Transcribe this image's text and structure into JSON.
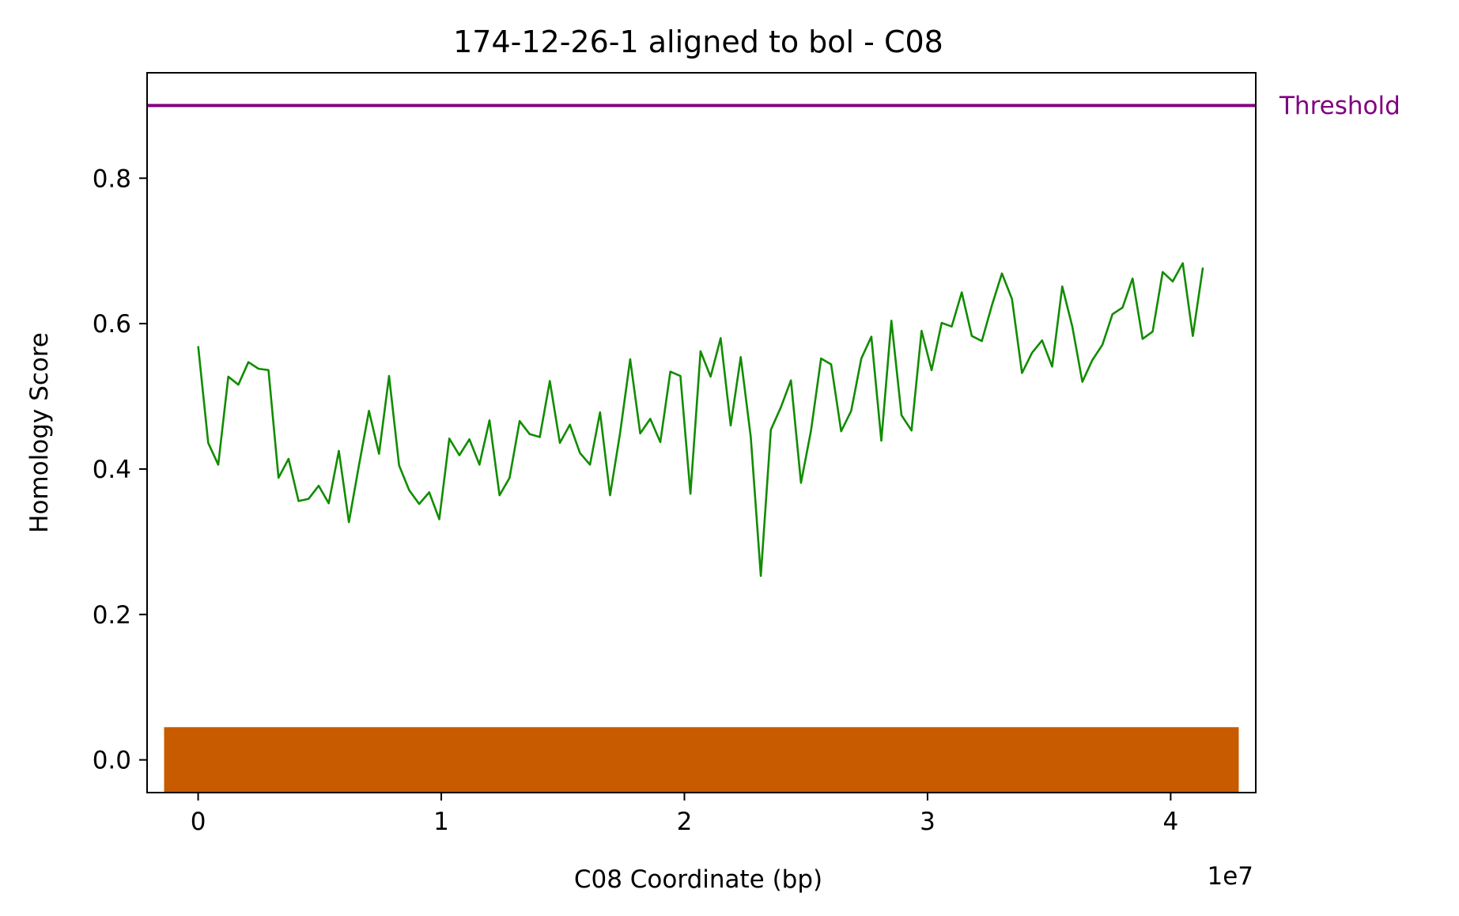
{
  "chart_data": {
    "type": "line",
    "title": "174-12-26-1 aligned to bol - C08",
    "xlabel": "C08 Coordinate (bp)",
    "ylabel": "Homology Score",
    "x_offset_label": "1e7",
    "xlim": [
      -2100000,
      43500000
    ],
    "ylim": [
      -0.045,
      0.945
    ],
    "xticks": [
      0,
      10000000,
      20000000,
      30000000,
      40000000
    ],
    "xtick_labels": [
      "0",
      "1",
      "2",
      "3",
      "4"
    ],
    "yticks": [
      0.0,
      0.2,
      0.4,
      0.6,
      0.8
    ],
    "ytick_labels": [
      "0.0",
      "0.2",
      "0.4",
      "0.6",
      "0.8"
    ],
    "grid": false,
    "threshold": {
      "label": "Threshold",
      "value": 0.9,
      "color": "#800080"
    },
    "band": {
      "x_start": -1400000,
      "x_end": 42800000,
      "y_top": 0.045,
      "color": "#c85a00"
    },
    "series": [
      {
        "color": "#118c00",
        "x": [
          0,
          413000,
          827000,
          1240000,
          1653000,
          2066000,
          2480000,
          2893000,
          3306000,
          3719000,
          4133000,
          4546000,
          4959000,
          5372000,
          5786000,
          6199000,
          6612000,
          7025000,
          7439000,
          7852000,
          8265000,
          8678000,
          9092000,
          9505000,
          9918000,
          10331000,
          10745000,
          11158000,
          11571000,
          11984000,
          12398000,
          12811000,
          13224000,
          13637000,
          14051000,
          14464000,
          14877000,
          15290000,
          15704000,
          16117000,
          16530000,
          16943000,
          17357000,
          17770000,
          18183000,
          18596000,
          19010000,
          19423000,
          19836000,
          20249000,
          20663000,
          21076000,
          21489000,
          21902000,
          22316000,
          22729000,
          23142000,
          23555000,
          23969000,
          24382000,
          24795000,
          25208000,
          25622000,
          26035000,
          26448000,
          26861000,
          27275000,
          27688000,
          28101000,
          28514000,
          28928000,
          29341000,
          29754000,
          30167000,
          30581000,
          30994000,
          31407000,
          31820000,
          32234000,
          32647000,
          33060000,
          33473000,
          33887000,
          34300000,
          34713000,
          35126000,
          35540000,
          35953000,
          36366000,
          36779000,
          37193000,
          37606000,
          38019000,
          38432000,
          38846000,
          39259000,
          39672000,
          40085000,
          40499000,
          40912000,
          41325000
        ],
        "y": [
          0.569,
          0.436,
          0.406,
          0.527,
          0.516,
          0.547,
          0.538,
          0.536,
          0.388,
          0.414,
          0.356,
          0.359,
          0.377,
          0.353,
          0.425,
          0.327,
          0.405,
          0.48,
          0.421,
          0.528,
          0.405,
          0.371,
          0.352,
          0.368,
          0.331,
          0.442,
          0.419,
          0.441,
          0.406,
          0.467,
          0.364,
          0.388,
          0.466,
          0.448,
          0.444,
          0.521,
          0.436,
          0.461,
          0.422,
          0.406,
          0.478,
          0.364,
          0.45,
          0.551,
          0.449,
          0.469,
          0.437,
          0.534,
          0.528,
          0.366,
          0.562,
          0.527,
          0.58,
          0.46,
          0.554,
          0.444,
          0.253,
          0.454,
          0.485,
          0.522,
          0.381,
          0.453,
          0.552,
          0.544,
          0.452,
          0.48,
          0.552,
          0.582,
          0.439,
          0.604,
          0.474,
          0.453,
          0.59,
          0.536,
          0.601,
          0.596,
          0.643,
          0.583,
          0.576,
          0.625,
          0.669,
          0.634,
          0.532,
          0.56,
          0.577,
          0.541,
          0.651,
          0.596,
          0.52,
          0.55,
          0.571,
          0.613,
          0.622,
          0.662,
          0.579,
          0.589,
          0.671,
          0.658,
          0.683,
          0.583,
          0.677
        ]
      }
    ]
  }
}
